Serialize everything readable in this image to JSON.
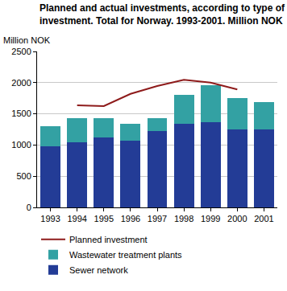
{
  "chart_data": {
    "type": "bar",
    "title": "Planned and actual investments, according to type of investment. Total for Norway. 1993-2001. Million NOK",
    "y_label": "Million NOK",
    "categories": [
      "1993",
      "1994",
      "1995",
      "1996",
      "1997",
      "1998",
      "1999",
      "2000",
      "2001"
    ],
    "stacked": true,
    "series": [
      {
        "name": "Sewer network",
        "type": "bar",
        "color": "#233c96",
        "values": [
          975,
          1045,
          1120,
          1065,
          1230,
          1340,
          1360,
          1255,
          1245
        ]
      },
      {
        "name": "Wastewater treatment plants",
        "type": "bar",
        "color": "#33a1a3",
        "values": [
          330,
          390,
          310,
          280,
          195,
          470,
          600,
          500,
          440
        ]
      },
      {
        "name": "Planned investment",
        "type": "line",
        "color": "#8e1b1b",
        "values": [
          null,
          1635,
          1625,
          1820,
          1945,
          2045,
          2000,
          1890,
          null
        ]
      }
    ],
    "ylim": [
      0,
      2500
    ],
    "yticks": [
      0,
      500,
      1000,
      1500,
      2000,
      2500
    ],
    "grid": true,
    "legend": "bottom"
  }
}
